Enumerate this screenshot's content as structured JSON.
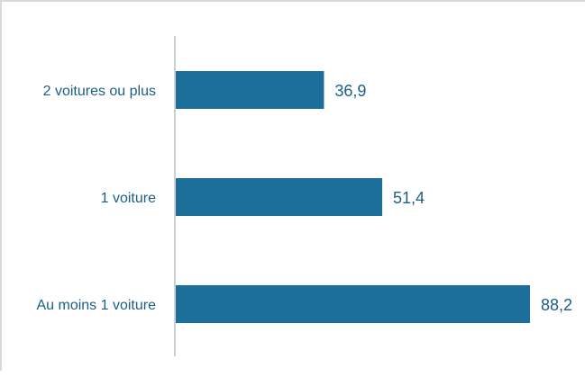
{
  "chart_data": {
    "type": "bar",
    "orientation": "horizontal",
    "title": "",
    "xlabel": "",
    "ylabel": "",
    "categories": [
      "2 voitures ou plus",
      "1 voiture",
      "Au moins 1 voiture"
    ],
    "values": [
      36.9,
      51.4,
      88.2
    ],
    "value_labels": [
      "36,9",
      "51,4",
      "88,2"
    ],
    "xlim": [
      0,
      88.2
    ],
    "grid": false,
    "legend": "none",
    "colors": {
      "bar": "#1b6f9a",
      "label_text": "#1b5f86",
      "axis": "#bfbfbf"
    }
  }
}
